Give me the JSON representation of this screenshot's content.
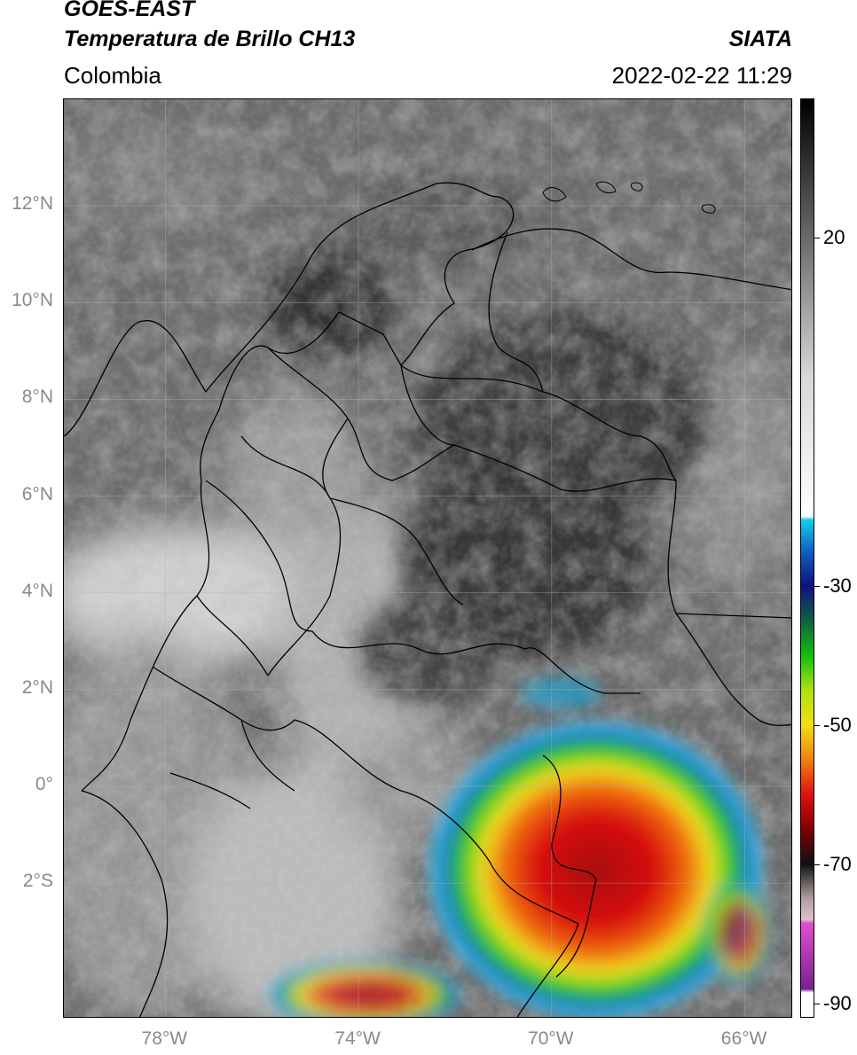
{
  "header": {
    "satellite": "GOES-EAST",
    "product": "Temperatura de Brillo CH13",
    "region": "Colombia",
    "agency": "SIATA",
    "datetime": "2022-02-22 11:29"
  },
  "map": {
    "lat_labels": [
      "12°N",
      "10°N",
      "8°N",
      "6°N",
      "4°N",
      "2°N",
      "0°",
      "2°S"
    ],
    "lon_labels": [
      "78°W",
      "74°W",
      "70°W",
      "66°W"
    ],
    "lat_values": [
      12,
      10,
      8,
      6,
      4,
      2,
      0,
      -2
    ],
    "lon_values": [
      -78,
      -74,
      -70,
      -66
    ],
    "lon_range": [
      -80.1,
      -65.0
    ],
    "lat_range": [
      -4.8,
      14.2
    ],
    "grid": true,
    "colors": {
      "background_gray": "#6e6e6e",
      "border": "#000000",
      "storm_red": "#d01010",
      "storm_yellow": "#f0e020",
      "storm_green": "#20c020",
      "storm_cyan": "#20b0e0"
    }
  },
  "colorbar": {
    "labels": [
      "20",
      "-30",
      "-50",
      "-70",
      "-90"
    ],
    "values": [
      20,
      -30,
      -50,
      -70,
      -90
    ],
    "range": [
      -92,
      40
    ],
    "stops": [
      {
        "v": 40,
        "c": "#000000"
      },
      {
        "v": 20,
        "c": "#6a6a6a"
      },
      {
        "v": 0,
        "c": "#d8d8d8"
      },
      {
        "v": -20,
        "c": "#ffffff"
      },
      {
        "v": -20.5,
        "c": "#10d0f0"
      },
      {
        "v": -25,
        "c": "#1060c0"
      },
      {
        "v": -30,
        "c": "#101080"
      },
      {
        "v": -35,
        "c": "#106040"
      },
      {
        "v": -40,
        "c": "#10c010"
      },
      {
        "v": -45,
        "c": "#b0e010"
      },
      {
        "v": -50,
        "c": "#f0e010"
      },
      {
        "v": -55,
        "c": "#f08010"
      },
      {
        "v": -60,
        "c": "#e01010"
      },
      {
        "v": -65,
        "c": "#800000"
      },
      {
        "v": -70,
        "c": "#101010"
      },
      {
        "v": -75,
        "c": "#b0a0a0"
      },
      {
        "v": -78,
        "c": "#e0c0d0"
      },
      {
        "v": -78.5,
        "c": "#e050d0"
      },
      {
        "v": -88,
        "c": "#7a2090"
      },
      {
        "v": -88.5,
        "c": "#ffffff"
      },
      {
        "v": -92,
        "c": "#ffffff"
      }
    ]
  }
}
